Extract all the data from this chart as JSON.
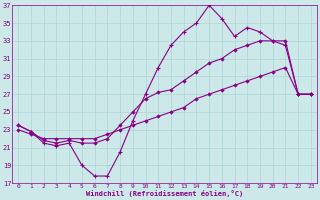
{
  "xlabel": "Windchill (Refroidissement éolien,°C)",
  "bg_color": "#cce8e8",
  "grid_color": "#aad4d4",
  "line_color": "#880088",
  "xlim": [
    -0.5,
    23.5
  ],
  "ylim": [
    17,
    37
  ],
  "xticks": [
    0,
    1,
    2,
    3,
    4,
    5,
    6,
    7,
    8,
    9,
    10,
    11,
    12,
    13,
    14,
    15,
    16,
    17,
    18,
    19,
    20,
    21,
    22,
    23
  ],
  "yticks": [
    17,
    19,
    21,
    23,
    25,
    27,
    29,
    31,
    33,
    35,
    37
  ],
  "line1_x": [
    0,
    1,
    2,
    3,
    4,
    5,
    6,
    7,
    8,
    9,
    10,
    11,
    12,
    13,
    14,
    15,
    16,
    17,
    18,
    19,
    20,
    21,
    22,
    23
  ],
  "line1_y": [
    23.5,
    22.8,
    21.5,
    21.2,
    21.5,
    19.0,
    17.8,
    17.8,
    20.5,
    24.0,
    27.0,
    30.0,
    32.5,
    34.0,
    35.0,
    37.0,
    35.5,
    33.5,
    34.5,
    34.0,
    33.0,
    32.5,
    27.0,
    27.0
  ],
  "line2_x": [
    0,
    1,
    2,
    3,
    4,
    5,
    6,
    7,
    8,
    9,
    10,
    11,
    12,
    13,
    14,
    15,
    16,
    17,
    18,
    19,
    20,
    21,
    22,
    23
  ],
  "line2_y": [
    23.5,
    22.8,
    21.8,
    21.5,
    21.8,
    21.5,
    21.5,
    22.0,
    23.5,
    25.0,
    26.5,
    27.2,
    27.5,
    28.5,
    29.5,
    30.5,
    31.0,
    32.0,
    32.5,
    33.0,
    33.0,
    33.0,
    27.0,
    27.0
  ],
  "line3_x": [
    0,
    1,
    2,
    3,
    4,
    5,
    6,
    7,
    8,
    9,
    10,
    11,
    12,
    13,
    14,
    15,
    16,
    17,
    18,
    19,
    20,
    21,
    22,
    23
  ],
  "line3_y": [
    23.0,
    22.5,
    22.0,
    22.0,
    22.0,
    22.0,
    22.0,
    22.5,
    23.0,
    23.5,
    24.0,
    24.5,
    25.0,
    25.5,
    26.5,
    27.0,
    27.5,
    28.0,
    28.5,
    29.0,
    29.5,
    30.0,
    27.0,
    27.0
  ]
}
